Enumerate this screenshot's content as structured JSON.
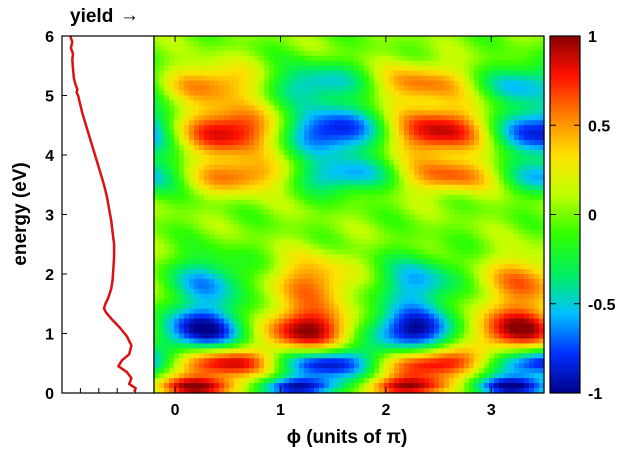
{
  "chart_data": [
    {
      "type": "line",
      "title_label": "yield",
      "arrow_glyph": "→",
      "ylabel": "energy (eV)",
      "ylim": [
        0,
        6
      ],
      "yticks": [
        0,
        1,
        2,
        3,
        4,
        5,
        6
      ],
      "color": "#dd1111",
      "x_direction": "increasing to the left",
      "series": [
        {
          "energy": [
            0.02,
            0.08,
            0.15,
            0.25,
            0.35,
            0.45,
            0.55,
            0.65,
            0.8,
            0.95,
            1.1,
            1.25,
            1.35,
            1.42,
            1.5,
            1.6,
            1.75,
            1.9,
            2.1,
            2.3,
            2.5,
            2.7,
            2.9,
            3.1,
            3.3,
            3.5,
            3.7,
            3.9,
            4.1,
            4.3,
            4.5,
            4.7,
            4.9,
            5.0,
            5.05,
            5.1,
            5.2,
            5.3,
            5.45,
            5.6,
            5.7,
            5.8,
            5.9,
            6.0
          ],
          "yield": [
            0.08,
            0.06,
            0.15,
            0.12,
            0.18,
            0.3,
            0.25,
            0.15,
            0.12,
            0.18,
            0.28,
            0.4,
            0.47,
            0.5,
            0.48,
            0.44,
            0.4,
            0.38,
            0.37,
            0.36,
            0.36,
            0.38,
            0.4,
            0.43,
            0.46,
            0.5,
            0.55,
            0.6,
            0.65,
            0.7,
            0.75,
            0.8,
            0.84,
            0.86,
            0.88,
            0.87,
            0.9,
            0.92,
            0.93,
            0.94,
            0.93,
            0.96,
            0.94,
            0.97
          ]
        }
      ]
    },
    {
      "type": "heatmap",
      "xlabel": "ϕ (units of π)",
      "ylabel": "energy (eV)",
      "xlim": [
        -0.2,
        3.5
      ],
      "ylim": [
        0,
        6
      ],
      "xticks": [
        0,
        1,
        2,
        3
      ],
      "yticks": [
        0,
        1,
        2,
        3,
        4,
        5,
        6
      ],
      "zlim": [
        -1,
        1
      ],
      "colorbar_ticks": [
        "1",
        "0.5",
        "0",
        "-0.5",
        "-1"
      ],
      "colormap": [
        "#00008a",
        "#0030ff",
        "#00c0ff",
        "#00f060",
        "#30ff00",
        "#c0ff00",
        "#ffe000",
        "#ff8000",
        "#ff1000",
        "#8a0000"
      ],
      "period_phi": 2,
      "band_phase_shift_phi": 1,
      "bands": [
        {
          "energy_range": [
            0,
            0.2
          ],
          "phase_phi": 0.2,
          "amplitude": 0.9
        },
        {
          "energy_range": [
            0.3,
            0.7
          ],
          "phase_phi": 0.45,
          "amplitude": 0.95
        },
        {
          "energy_range": [
            0.7,
            1.4
          ],
          "phase_phi": 1.25,
          "amplitude": 0.95
        },
        {
          "energy_range": [
            1.4,
            2.3
          ],
          "phase_phi": 1.3,
          "amplitude": 0.55
        },
        {
          "energy_range": [
            3.4,
            3.9
          ],
          "phase_phi": 0.6,
          "amplitude": 0.6
        },
        {
          "energy_range": [
            4.0,
            4.8
          ],
          "phase_phi": 0.5,
          "amplitude": 0.9
        },
        {
          "energy_range": [
            4.9,
            5.5
          ],
          "phase_phi": 0.35,
          "amplitude": 0.55
        }
      ]
    }
  ]
}
